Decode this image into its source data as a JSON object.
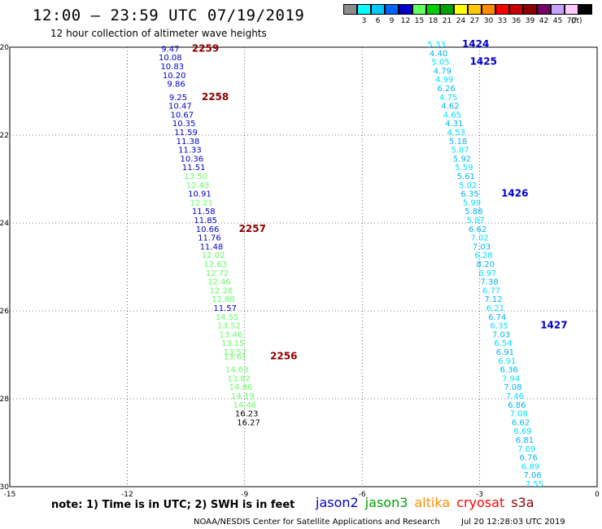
{
  "header": {
    "title": "12:00 – 23:59 UTC 07/19/2019",
    "subtitle": "12 hour collection of altimeter wave heights"
  },
  "color_scale": {
    "unit": "(ft)",
    "bins": [
      {
        "label": "",
        "color": "#8c8c8c"
      },
      {
        "label": "3",
        "color": "#00ffff"
      },
      {
        "label": "6",
        "color": "#00c8ff"
      },
      {
        "label": "9",
        "color": "#0064ff"
      },
      {
        "label": "12",
        "color": "#0000c8"
      },
      {
        "label": "15",
        "color": "#64ff64"
      },
      {
        "label": "18",
        "color": "#00d200"
      },
      {
        "label": "21",
        "color": "#00a000"
      },
      {
        "label": "24",
        "color": "#ffff00"
      },
      {
        "label": "27",
        "color": "#ffc800"
      },
      {
        "label": "30",
        "color": "#ff8c00"
      },
      {
        "label": "33",
        "color": "#ff0000"
      },
      {
        "label": "36",
        "color": "#c80000"
      },
      {
        "label": "39",
        "color": "#8c0000"
      },
      {
        "label": "42",
        "color": "#780064"
      },
      {
        "label": "45",
        "color": "#c8a0ff"
      },
      {
        "label": "70",
        "color": "#ffc8ff"
      },
      {
        "label": "",
        "color": "#000000"
      }
    ]
  },
  "footer": {
    "note": "note: 1) Time is in UTC; 2) SWH is in feet",
    "credit": "NOAA/NESDIS Center for Satellite Applications and Research",
    "timestamp": "Jul 20 12:28:03 UTC 2019",
    "legend": [
      {
        "name": "jason2",
        "color": "#0000c8"
      },
      {
        "name": "jason3",
        "color": "#00a000"
      },
      {
        "name": "altika",
        "color": "#ff8c00"
      },
      {
        "name": "cryosat",
        "color": "#ff0000"
      },
      {
        "name": "s3a",
        "color": "#8c0000"
      }
    ]
  },
  "chart_data": {
    "type": "scatter",
    "xlim": [
      -15,
      0
    ],
    "ylim": [
      -30,
      -20
    ],
    "xticks": [
      "-15",
      "-12",
      "-9",
      "-6",
      "-3",
      "0"
    ],
    "yticks": [
      "-20",
      "-22",
      "-24",
      "-26",
      "-28",
      "-30"
    ],
    "ytick_values": [
      -20,
      -22,
      -24,
      -26,
      -28,
      -30
    ],
    "xtick_values": [
      -15,
      -12,
      -9,
      -6,
      -3,
      0
    ],
    "grid": true,
    "colors": {
      "jason2": "#0000c8",
      "jason3_light": "#64ff64",
      "cyan_light": "#00e0ff",
      "cyan_mid": "#00b4f0",
      "time": "#8c0000",
      "time_blue": "#0000c8"
    },
    "track1_points": [
      {
        "x": -10.9,
        "y": -20.1,
        "v": "9.47",
        "c": "jason2"
      },
      {
        "x": -10.9,
        "y": -20.3,
        "v": "10.08",
        "c": "jason2"
      },
      {
        "x": -10.85,
        "y": -20.5,
        "v": "10.83",
        "c": "jason2"
      },
      {
        "x": -10.8,
        "y": -20.7,
        "v": "10.20",
        "c": "jason2"
      },
      {
        "x": -10.75,
        "y": -20.9,
        "v": "9.86",
        "c": "jason2"
      },
      {
        "x": -10.7,
        "y": -21.2,
        "v": "9.25",
        "c": "jason2"
      },
      {
        "x": -10.65,
        "y": -21.4,
        "v": "10.47",
        "c": "jason2"
      },
      {
        "x": -10.6,
        "y": -21.6,
        "v": "10.67",
        "c": "jason2"
      },
      {
        "x": -10.55,
        "y": -21.8,
        "v": "10.35",
        "c": "jason2"
      },
      {
        "x": -10.5,
        "y": -22.0,
        "v": "11.59",
        "c": "jason2"
      },
      {
        "x": -10.45,
        "y": -22.2,
        "v": "11.38",
        "c": "jason2"
      },
      {
        "x": -10.4,
        "y": -22.4,
        "v": "11.33",
        "c": "jason2"
      },
      {
        "x": -10.35,
        "y": -22.6,
        "v": "10.36",
        "c": "jason2"
      },
      {
        "x": -10.3,
        "y": -22.8,
        "v": "11.51",
        "c": "jason2"
      },
      {
        "x": -10.25,
        "y": -23.0,
        "v": "13.50",
        "c": "jason3_light"
      },
      {
        "x": -10.2,
        "y": -23.2,
        "v": "12.43",
        "c": "jason3_light"
      },
      {
        "x": -10.15,
        "y": -23.4,
        "v": "10.91",
        "c": "jason2"
      },
      {
        "x": -10.1,
        "y": -23.6,
        "v": "12.21",
        "c": "jason3_light"
      },
      {
        "x": -10.05,
        "y": -23.8,
        "v": "11.58",
        "c": "jason2"
      },
      {
        "x": -10.0,
        "y": -24.0,
        "v": "11.85",
        "c": "jason2"
      },
      {
        "x": -9.95,
        "y": -24.2,
        "v": "10.66",
        "c": "jason2"
      },
      {
        "x": -9.9,
        "y": -24.4,
        "v": "11.76",
        "c": "jason2"
      },
      {
        "x": -9.85,
        "y": -24.6,
        "v": "11.48",
        "c": "jason2"
      },
      {
        "x": -9.8,
        "y": -24.8,
        "v": "12.02",
        "c": "jason3_light"
      },
      {
        "x": -9.75,
        "y": -25.0,
        "v": "12.63",
        "c": "jason3_light"
      },
      {
        "x": -9.7,
        "y": -25.2,
        "v": "12.72",
        "c": "jason3_light"
      },
      {
        "x": -9.65,
        "y": -25.4,
        "v": "12.46",
        "c": "jason3_light"
      },
      {
        "x": -9.6,
        "y": -25.6,
        "v": "12.28",
        "c": "jason3_light"
      },
      {
        "x": -9.55,
        "y": -25.8,
        "v": "12.88",
        "c": "jason3_light"
      },
      {
        "x": -9.5,
        "y": -26.0,
        "v": "11.57",
        "c": "jason2"
      },
      {
        "x": -9.45,
        "y": -26.2,
        "v": "14.55",
        "c": "jason3_light"
      },
      {
        "x": -9.4,
        "y": -26.4,
        "v": "13.52",
        "c": "jason3_light"
      },
      {
        "x": -9.35,
        "y": -26.6,
        "v": "13.46",
        "c": "jason3_light"
      },
      {
        "x": -9.3,
        "y": -26.8,
        "v": "13.15",
        "c": "jason3_light"
      },
      {
        "x": -9.25,
        "y": -27.0,
        "v": "13.57",
        "c": "jason3_light"
      },
      {
        "x": -9.25,
        "y": -27.1,
        "v": "13.61",
        "c": "jason3_light"
      },
      {
        "x": -9.2,
        "y": -27.4,
        "v": "14.63",
        "c": "jason3_light"
      },
      {
        "x": -9.15,
        "y": -27.6,
        "v": "13.82",
        "c": "jason3_light"
      },
      {
        "x": -9.1,
        "y": -27.8,
        "v": "14.86",
        "c": "jason3_light"
      },
      {
        "x": -9.05,
        "y": -28.0,
        "v": "14.19",
        "c": "jason3_light"
      },
      {
        "x": -9.0,
        "y": -28.2,
        "v": "14.46",
        "c": "jason3_light"
      },
      {
        "x": -8.95,
        "y": -28.4,
        "v": "16.23",
        "c": "jason3"
      },
      {
        "x": -8.9,
        "y": -28.6,
        "v": "16.27",
        "c": "jason3"
      }
    ],
    "track2_points": [
      {
        "x": -4.1,
        "y": -20.0,
        "v": "5.33"
      },
      {
        "x": -4.05,
        "y": -20.2,
        "v": "4.40"
      },
      {
        "x": -4.0,
        "y": -20.4,
        "v": "5.05"
      },
      {
        "x": -3.95,
        "y": -20.6,
        "v": "4.79"
      },
      {
        "x": -3.9,
        "y": -20.8,
        "v": "4.99"
      },
      {
        "x": -3.85,
        "y": -21.0,
        "v": "6.26"
      },
      {
        "x": -3.8,
        "y": -21.2,
        "v": "4.75"
      },
      {
        "x": -3.75,
        "y": -21.4,
        "v": "4.62"
      },
      {
        "x": -3.7,
        "y": -21.6,
        "v": "4.65"
      },
      {
        "x": -3.65,
        "y": -21.8,
        "v": "4.31"
      },
      {
        "x": -3.6,
        "y": -22.0,
        "v": "4.53"
      },
      {
        "x": -3.55,
        "y": -22.2,
        "v": "5.18"
      },
      {
        "x": -3.5,
        "y": -22.4,
        "v": "5.87"
      },
      {
        "x": -3.45,
        "y": -22.6,
        "v": "5.92"
      },
      {
        "x": -3.4,
        "y": -22.8,
        "v": "5.59"
      },
      {
        "x": -3.35,
        "y": -23.0,
        "v": "5.61"
      },
      {
        "x": -3.3,
        "y": -23.2,
        "v": "5.02"
      },
      {
        "x": -3.25,
        "y": -23.4,
        "v": "6.35"
      },
      {
        "x": -3.2,
        "y": -23.6,
        "v": "5.99"
      },
      {
        "x": -3.15,
        "y": -23.8,
        "v": "5.88"
      },
      {
        "x": -3.1,
        "y": -24.0,
        "v": "5.87"
      },
      {
        "x": -3.05,
        "y": -24.2,
        "v": "6.62"
      },
      {
        "x": -3.0,
        "y": -24.4,
        "v": "7.02"
      },
      {
        "x": -2.95,
        "y": -24.6,
        "v": "7.03"
      },
      {
        "x": -2.9,
        "y": -24.8,
        "v": "6.28"
      },
      {
        "x": -2.85,
        "y": -25.0,
        "v": "8.20"
      },
      {
        "x": -2.8,
        "y": -25.2,
        "v": "6.97"
      },
      {
        "x": -2.75,
        "y": -25.4,
        "v": "7.38"
      },
      {
        "x": -2.7,
        "y": -25.6,
        "v": "6.77"
      },
      {
        "x": -2.65,
        "y": -25.8,
        "v": "7.12"
      },
      {
        "x": -2.6,
        "y": -26.0,
        "v": "6.21"
      },
      {
        "x": -2.55,
        "y": -26.2,
        "v": "6.74"
      },
      {
        "x": -2.5,
        "y": -26.4,
        "v": "6.35"
      },
      {
        "x": -2.45,
        "y": -26.6,
        "v": "7.03"
      },
      {
        "x": -2.4,
        "y": -26.8,
        "v": "6.54"
      },
      {
        "x": -2.35,
        "y": -27.0,
        "v": "6.91"
      },
      {
        "x": -2.3,
        "y": -27.2,
        "v": "6.91"
      },
      {
        "x": -2.25,
        "y": -27.4,
        "v": "6.36"
      },
      {
        "x": -2.2,
        "y": -27.6,
        "v": "7.94"
      },
      {
        "x": -2.15,
        "y": -27.8,
        "v": "7.08"
      },
      {
        "x": -2.1,
        "y": -28.0,
        "v": "7.46"
      },
      {
        "x": -2.05,
        "y": -28.2,
        "v": "6.86"
      },
      {
        "x": -2.0,
        "y": -28.4,
        "v": "7.08"
      },
      {
        "x": -1.95,
        "y": -28.6,
        "v": "6.62"
      },
      {
        "x": -1.9,
        "y": -28.8,
        "v": "6.69"
      },
      {
        "x": -1.85,
        "y": -29.0,
        "v": "6.81"
      },
      {
        "x": -1.8,
        "y": -29.2,
        "v": "7.09"
      },
      {
        "x": -1.75,
        "y": -29.4,
        "v": "6.76"
      },
      {
        "x": -1.7,
        "y": -29.6,
        "v": "6.89"
      },
      {
        "x": -1.65,
        "y": -29.8,
        "v": "7.06"
      },
      {
        "x": -1.6,
        "y": -30.0,
        "v": "7.55"
      }
    ],
    "times": [
      {
        "x": -10.35,
        "y": -20.1,
        "t": "2259",
        "c": "time"
      },
      {
        "x": -10.1,
        "y": -21.2,
        "t": "2258",
        "c": "time"
      },
      {
        "x": -9.15,
        "y": -24.2,
        "t": "2257",
        "c": "time"
      },
      {
        "x": -8.35,
        "y": -27.1,
        "t": "2256",
        "c": "time"
      },
      {
        "x": -3.45,
        "y": -20.0,
        "t": "1424",
        "c": "time_blue"
      },
      {
        "x": -3.25,
        "y": -20.4,
        "t": "1425",
        "c": "time_blue"
      },
      {
        "x": -2.45,
        "y": -23.4,
        "t": "1426",
        "c": "time_blue"
      },
      {
        "x": -1.45,
        "y": -26.4,
        "t": "1427",
        "c": "time_blue"
      }
    ]
  }
}
